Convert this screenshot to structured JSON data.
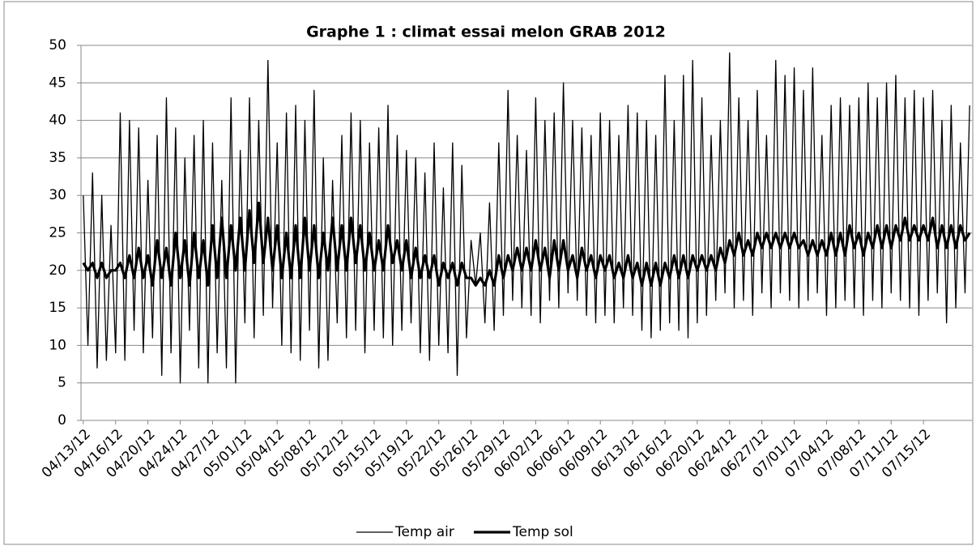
{
  "chart_data": {
    "type": "line",
    "title": "Graphe 1 : climat essai melon GRAB 2012",
    "categories": [
      "04/13/12",
      null,
      null,
      null,
      null,
      null,
      null,
      "04/16/12",
      null,
      null,
      null,
      null,
      null,
      null,
      "04/20/12",
      null,
      null,
      null,
      null,
      null,
      null,
      "04/24/12",
      null,
      null,
      null,
      null,
      null,
      null,
      "04/27/12",
      null,
      null,
      null,
      null,
      null,
      null,
      "05/01/12",
      null,
      null,
      null,
      null,
      null,
      null,
      "05/04/12",
      null,
      null,
      null,
      null,
      null,
      null,
      "05/08/12",
      null,
      null,
      null,
      null,
      null,
      null,
      "05/12/12",
      null,
      null,
      null,
      null,
      null,
      null,
      "05/15/12",
      null,
      null,
      null,
      null,
      null,
      null,
      "05/19/12",
      null,
      null,
      null,
      null,
      null,
      null,
      "05/22/12",
      null,
      null,
      null,
      null,
      null,
      null,
      "05/26/12",
      null,
      null,
      null,
      null,
      null,
      null,
      "05/29/12",
      null,
      null,
      null,
      null,
      null,
      null,
      "06/02/12",
      null,
      null,
      null,
      null,
      null,
      null,
      "06/06/12",
      null,
      null,
      null,
      null,
      null,
      null,
      "06/09/12",
      null,
      null,
      null,
      null,
      null,
      null,
      "06/13/12",
      null,
      null,
      null,
      null,
      null,
      null,
      "06/16/12",
      null,
      null,
      null,
      null,
      null,
      null,
      "06/20/12",
      null,
      null,
      null,
      null,
      null,
      null,
      "06/24/12",
      null,
      null,
      null,
      null,
      null,
      null,
      "06/27/12",
      null,
      null,
      null,
      null,
      null,
      null,
      "07/01/12",
      null,
      null,
      null,
      null,
      null,
      null,
      "07/04/12",
      null,
      null,
      null,
      null,
      null,
      null,
      "07/08/12",
      null,
      null,
      null,
      null,
      null,
      null,
      "07/11/12",
      null,
      null,
      null,
      null,
      null,
      null,
      "07/15/12",
      null,
      null,
      null,
      null,
      null,
      null,
      null,
      null,
      null,
      null
    ],
    "series": [
      {
        "name": "Temp air",
        "color": "#000000",
        "width": 1.3,
        "values": [
          30,
          10,
          33,
          7,
          30,
          8,
          26,
          9,
          41,
          8,
          40,
          12,
          39,
          9,
          32,
          11,
          38,
          6,
          43,
          9,
          39,
          5,
          35,
          12,
          38,
          7,
          40,
          5,
          37,
          9,
          32,
          7,
          43,
          5,
          36,
          13,
          43,
          11,
          40,
          14,
          48,
          15,
          37,
          10,
          41,
          9,
          42,
          8,
          40,
          12,
          44,
          7,
          35,
          8,
          32,
          13,
          38,
          11,
          41,
          12,
          40,
          9,
          37,
          12,
          39,
          11,
          42,
          10,
          38,
          12,
          36,
          13,
          35,
          9,
          33,
          8,
          37,
          10,
          31,
          9,
          37,
          6,
          34,
          11,
          24,
          18,
          25,
          13,
          29,
          12,
          37,
          14,
          44,
          16,
          38,
          15,
          36,
          14,
          43,
          13,
          40,
          16,
          41,
          15,
          45,
          17,
          40,
          16,
          39,
          14,
          38,
          13,
          41,
          14,
          40,
          13,
          38,
          15,
          42,
          14,
          41,
          12,
          40,
          11,
          38,
          12,
          46,
          13,
          40,
          12,
          46,
          11,
          48,
          13,
          43,
          14,
          38,
          16,
          40,
          17,
          49,
          15,
          43,
          16,
          40,
          14,
          44,
          17,
          38,
          15,
          48,
          17,
          46,
          16,
          47,
          15,
          44,
          16,
          47,
          17,
          38,
          14,
          42,
          15,
          43,
          16,
          42,
          15,
          43,
          14,
          45,
          16,
          43,
          15,
          45,
          17,
          46,
          16,
          43,
          15,
          44,
          14,
          43,
          16,
          44,
          17,
          40,
          13,
          42,
          15,
          37,
          17,
          42
        ]
      },
      {
        "name": "Temp sol",
        "color": "#000000",
        "width": 3.2,
        "values": [
          21,
          20,
          21,
          19,
          21,
          19,
          20,
          20,
          21,
          19,
          22,
          19,
          23,
          19,
          22,
          18,
          24,
          19,
          23,
          18,
          25,
          19,
          24,
          18,
          25,
          19,
          24,
          18,
          26,
          19,
          27,
          19,
          26,
          20,
          27,
          20,
          28,
          21,
          29,
          21,
          27,
          20,
          26,
          19,
          25,
          19,
          26,
          19,
          27,
          20,
          26,
          19,
          25,
          20,
          27,
          20,
          26,
          20,
          27,
          21,
          26,
          20,
          25,
          20,
          24,
          20,
          26,
          21,
          24,
          20,
          24,
          19,
          23,
          19,
          22,
          19,
          22,
          18,
          21,
          19,
          21,
          18,
          21,
          19,
          19,
          18,
          19,
          18,
          20,
          18,
          22,
          19,
          22,
          20,
          23,
          20,
          23,
          20,
          24,
          20,
          23,
          19,
          24,
          20,
          24,
          20,
          22,
          19,
          23,
          20,
          22,
          19,
          22,
          20,
          22,
          19,
          21,
          19,
          22,
          19,
          21,
          18,
          21,
          18,
          21,
          18,
          21,
          19,
          22,
          19,
          22,
          19,
          22,
          20,
          22,
          20,
          22,
          20,
          23,
          21,
          24,
          22,
          25,
          22,
          24,
          22,
          25,
          23,
          25,
          23,
          25,
          23,
          25,
          23,
          25,
          23,
          24,
          22,
          24,
          22,
          24,
          22,
          25,
          22,
          25,
          22,
          26,
          23,
          25,
          22,
          25,
          23,
          26,
          23,
          26,
          23,
          26,
          24,
          27,
          24,
          26,
          24,
          26,
          24,
          27,
          23,
          26,
          23,
          26,
          23,
          26,
          24,
          25
        ]
      }
    ],
    "ylim": [
      0,
      50
    ],
    "yticks": [
      0,
      5,
      10,
      15,
      20,
      25,
      30,
      35,
      40,
      45,
      50
    ],
    "grid": true,
    "legend": "bottom"
  }
}
